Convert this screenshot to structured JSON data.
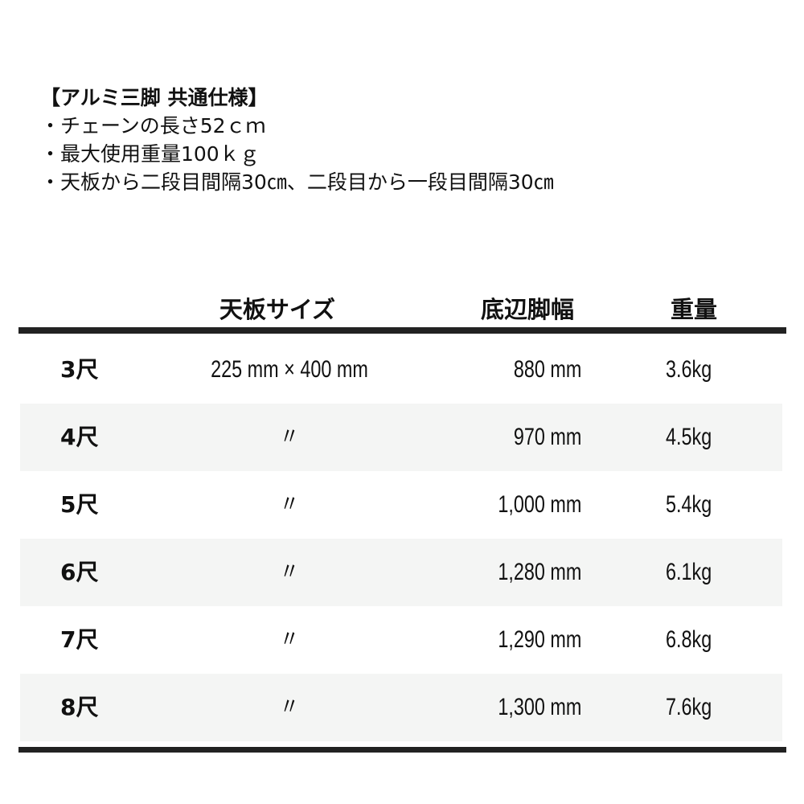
{
  "spec": {
    "title": "【アルミ三脚 共通仕様】",
    "lines": [
      "・チェーンの長さ52ｃｍ",
      "・最大使用重量100ｋｇ",
      "・天板から二段目間隔30㎝、二段目から一段目間隔30㎝"
    ]
  },
  "table": {
    "headers": [
      "天板サイズ",
      "底辺脚幅",
      "重量"
    ],
    "rows": [
      {
        "size": "3尺",
        "top": "225 mm × 400 mm",
        "base": "880 mm",
        "weight": "3.6kg"
      },
      {
        "size": "4尺",
        "top": "〃",
        "base": "970 mm",
        "weight": "4.5kg"
      },
      {
        "size": "5尺",
        "top": "〃",
        "base": "1,000 mm",
        "weight": "5.4kg"
      },
      {
        "size": "6尺",
        "top": "〃",
        "base": "1,280 mm",
        "weight": "6.1kg"
      },
      {
        "size": "7尺",
        "top": "〃",
        "base": "1,290 mm",
        "weight": "6.8kg"
      },
      {
        "size": "8尺",
        "top": "〃",
        "base": "1,300 mm",
        "weight": "7.6kg"
      }
    ]
  },
  "colors": {
    "rule": "#222222",
    "shade": "#f4f5f4"
  }
}
